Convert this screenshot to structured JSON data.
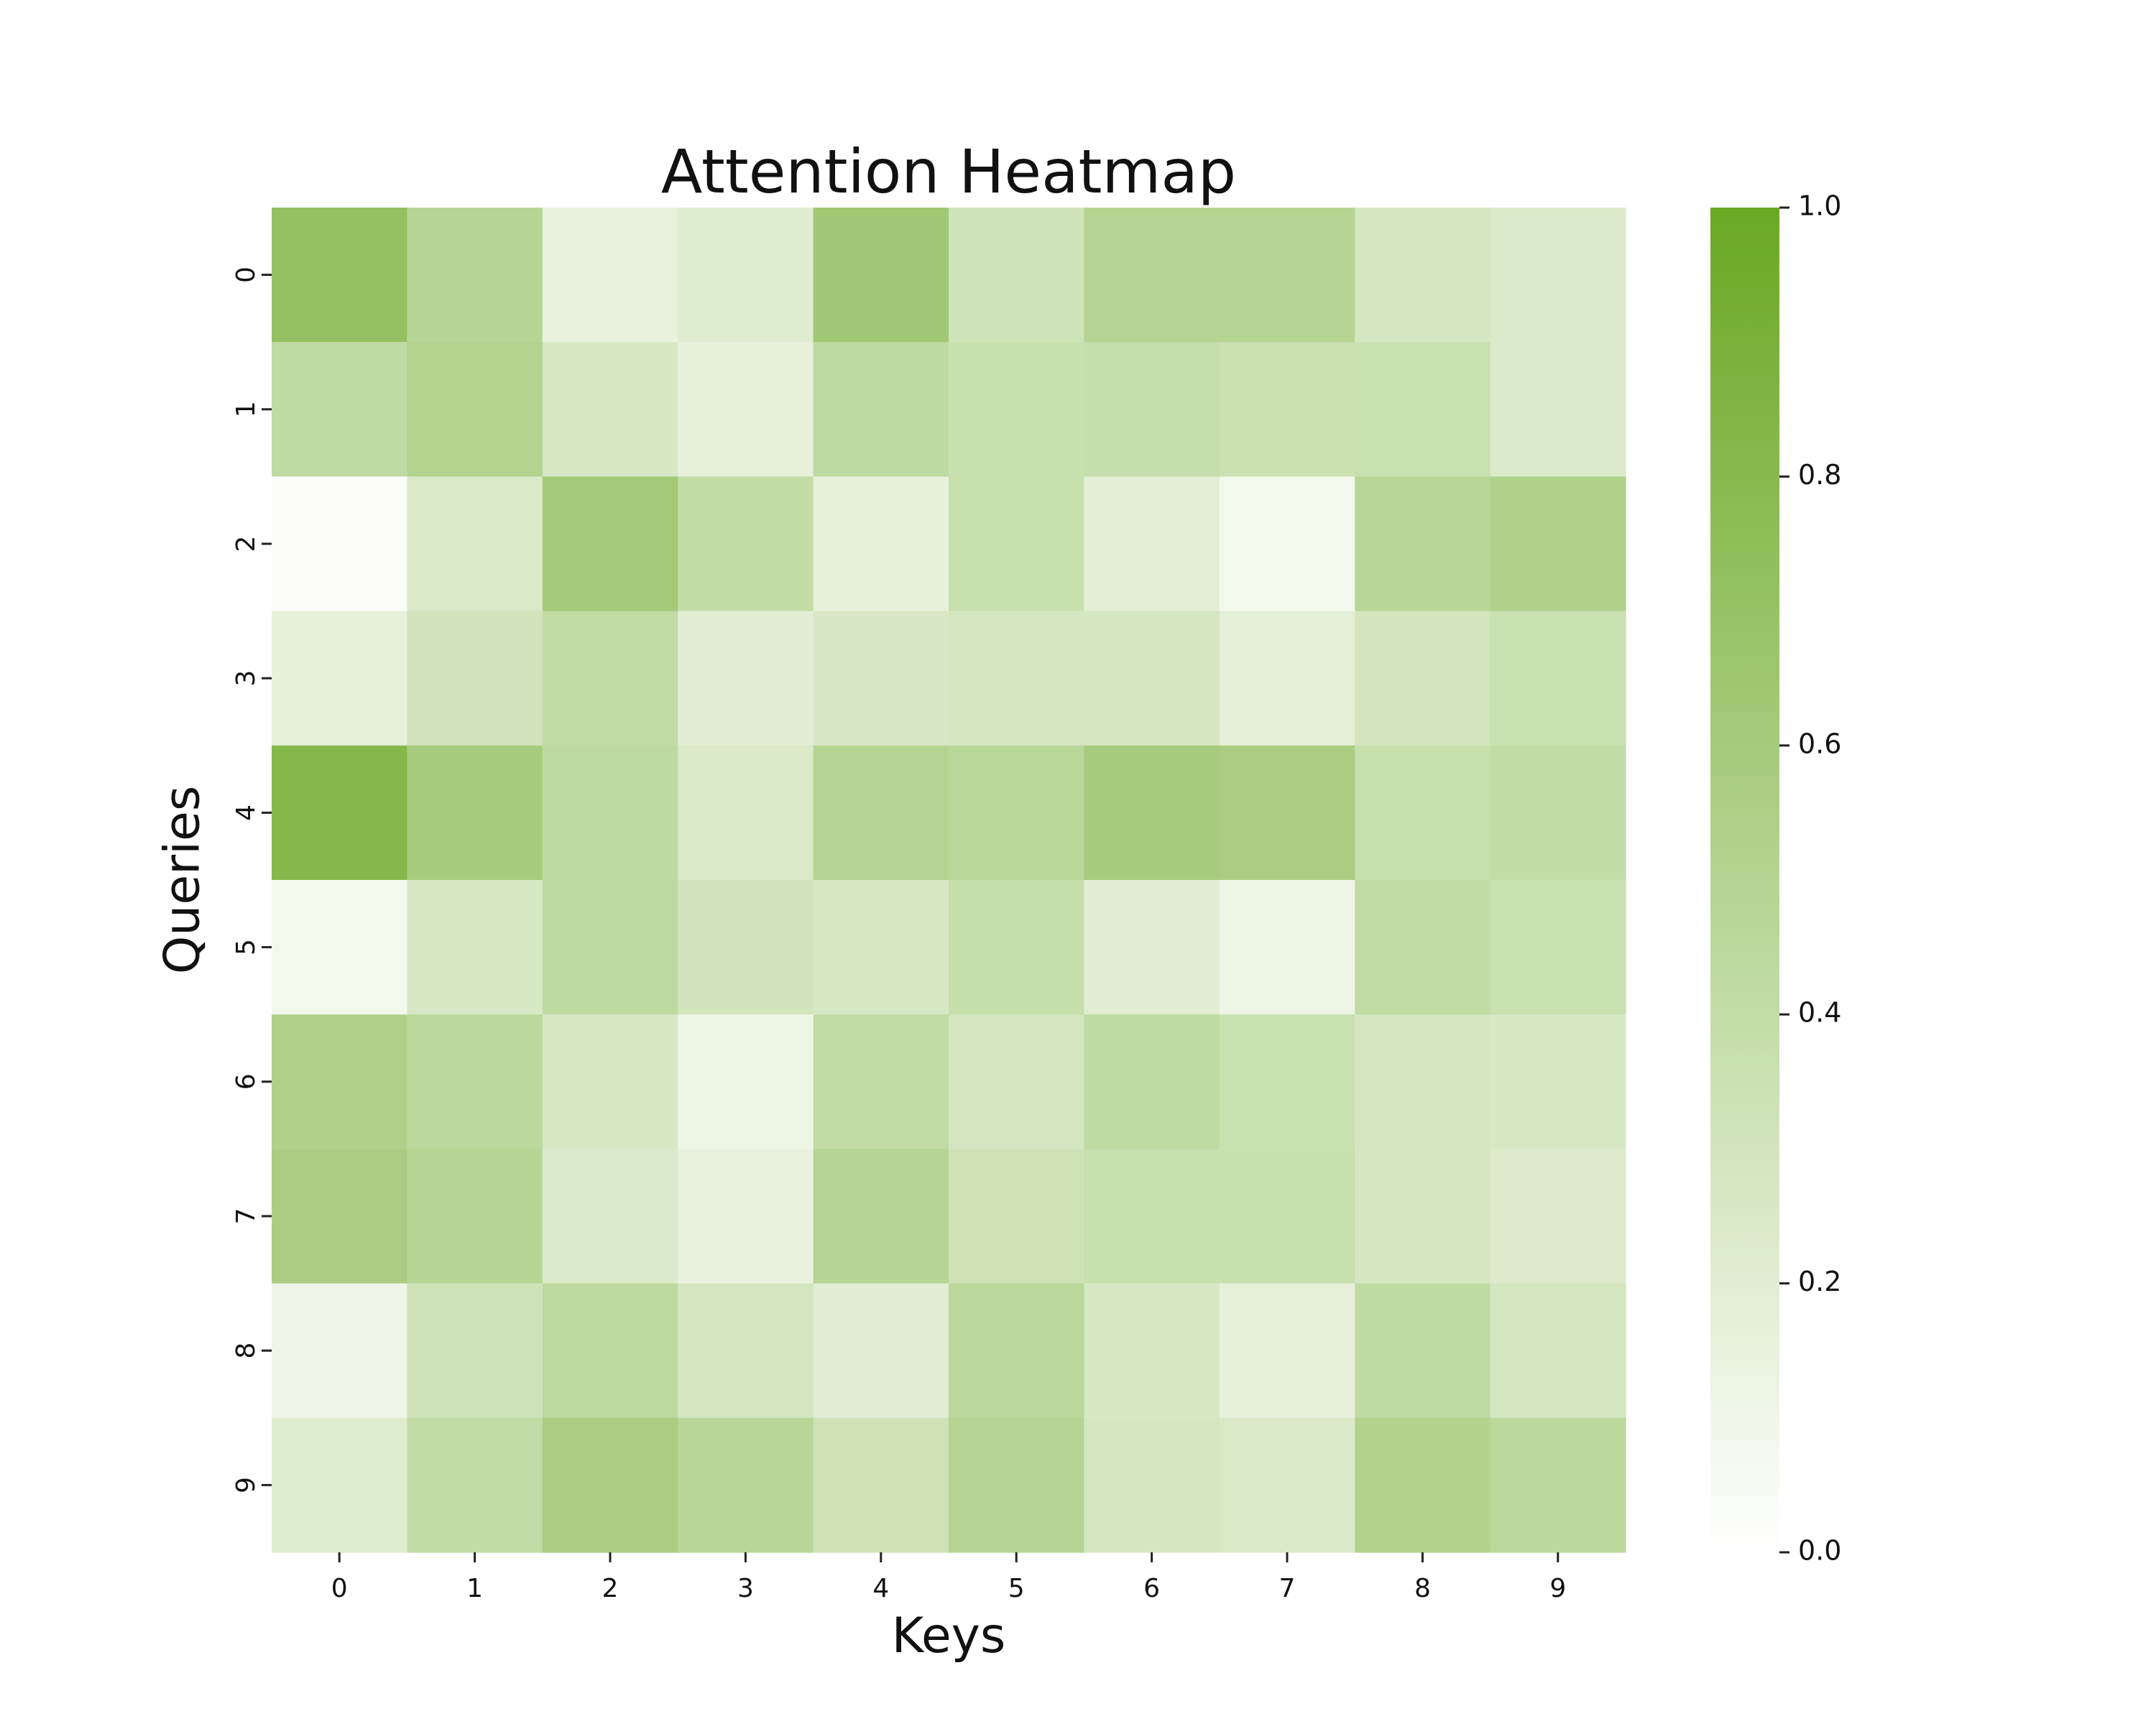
{
  "chart_data": {
    "type": "heatmap",
    "title": "Attention Heatmap",
    "xlabel": "Keys",
    "ylabel": "Queries",
    "x_categories": [
      "0",
      "1",
      "2",
      "3",
      "4",
      "5",
      "6",
      "7",
      "8",
      "9"
    ],
    "y_categories": [
      "0",
      "1",
      "2",
      "3",
      "4",
      "5",
      "6",
      "7",
      "8",
      "9"
    ],
    "values": [
      [
        0.72,
        0.48,
        0.15,
        0.22,
        0.63,
        0.32,
        0.5,
        0.5,
        0.28,
        0.24
      ],
      [
        0.42,
        0.51,
        0.27,
        0.16,
        0.43,
        0.37,
        0.38,
        0.35,
        0.36,
        0.24
      ],
      [
        0.03,
        0.25,
        0.62,
        0.4,
        0.16,
        0.37,
        0.19,
        0.08,
        0.47,
        0.53
      ],
      [
        0.16,
        0.31,
        0.41,
        0.2,
        0.26,
        0.28,
        0.28,
        0.18,
        0.3,
        0.36
      ],
      [
        0.82,
        0.59,
        0.43,
        0.25,
        0.5,
        0.46,
        0.59,
        0.57,
        0.37,
        0.4
      ],
      [
        0.08,
        0.27,
        0.43,
        0.31,
        0.27,
        0.38,
        0.2,
        0.12,
        0.41,
        0.36
      ],
      [
        0.53,
        0.45,
        0.27,
        0.12,
        0.41,
        0.29,
        0.42,
        0.36,
        0.28,
        0.27
      ],
      [
        0.57,
        0.48,
        0.24,
        0.15,
        0.49,
        0.33,
        0.37,
        0.37,
        0.28,
        0.23
      ],
      [
        0.11,
        0.32,
        0.44,
        0.29,
        0.2,
        0.45,
        0.27,
        0.17,
        0.42,
        0.29
      ],
      [
        0.22,
        0.4,
        0.57,
        0.47,
        0.33,
        0.49,
        0.28,
        0.25,
        0.52,
        0.45
      ]
    ],
    "colorbar": {
      "min": 0.0,
      "max": 1.0,
      "ticks": [
        "0.0",
        "0.2",
        "0.4",
        "0.6",
        "0.8",
        "1.0"
      ],
      "low_color": "#ffffff",
      "high_color": "#6aa823"
    },
    "grid": false
  }
}
